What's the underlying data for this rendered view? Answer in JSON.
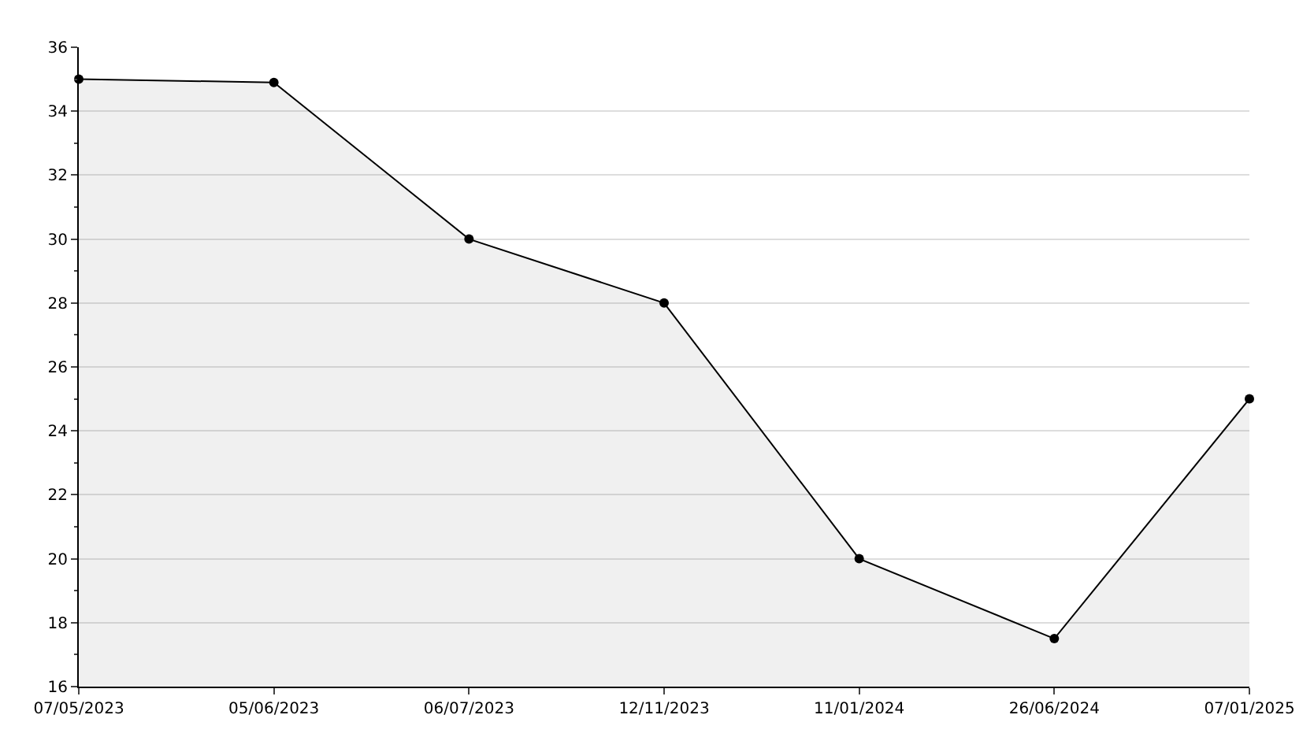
{
  "chart_data": {
    "type": "area",
    "categories": [
      "07/05/2023",
      "05/06/2023",
      "06/07/2023",
      "12/11/2023",
      "11/01/2024",
      "26/06/2024",
      "07/01/2025"
    ],
    "series": [
      {
        "color": "#000000",
        "values": [
          35,
          34.9,
          30,
          28,
          20,
          17.5,
          25
        ]
      }
    ],
    "ylim": [
      16,
      36
    ],
    "yticks": [
      16,
      18,
      20,
      22,
      24,
      26,
      28,
      30,
      32,
      34,
      36
    ],
    "grid": "y",
    "marker": "circle",
    "line_style": "solid",
    "legend": false
  }
}
